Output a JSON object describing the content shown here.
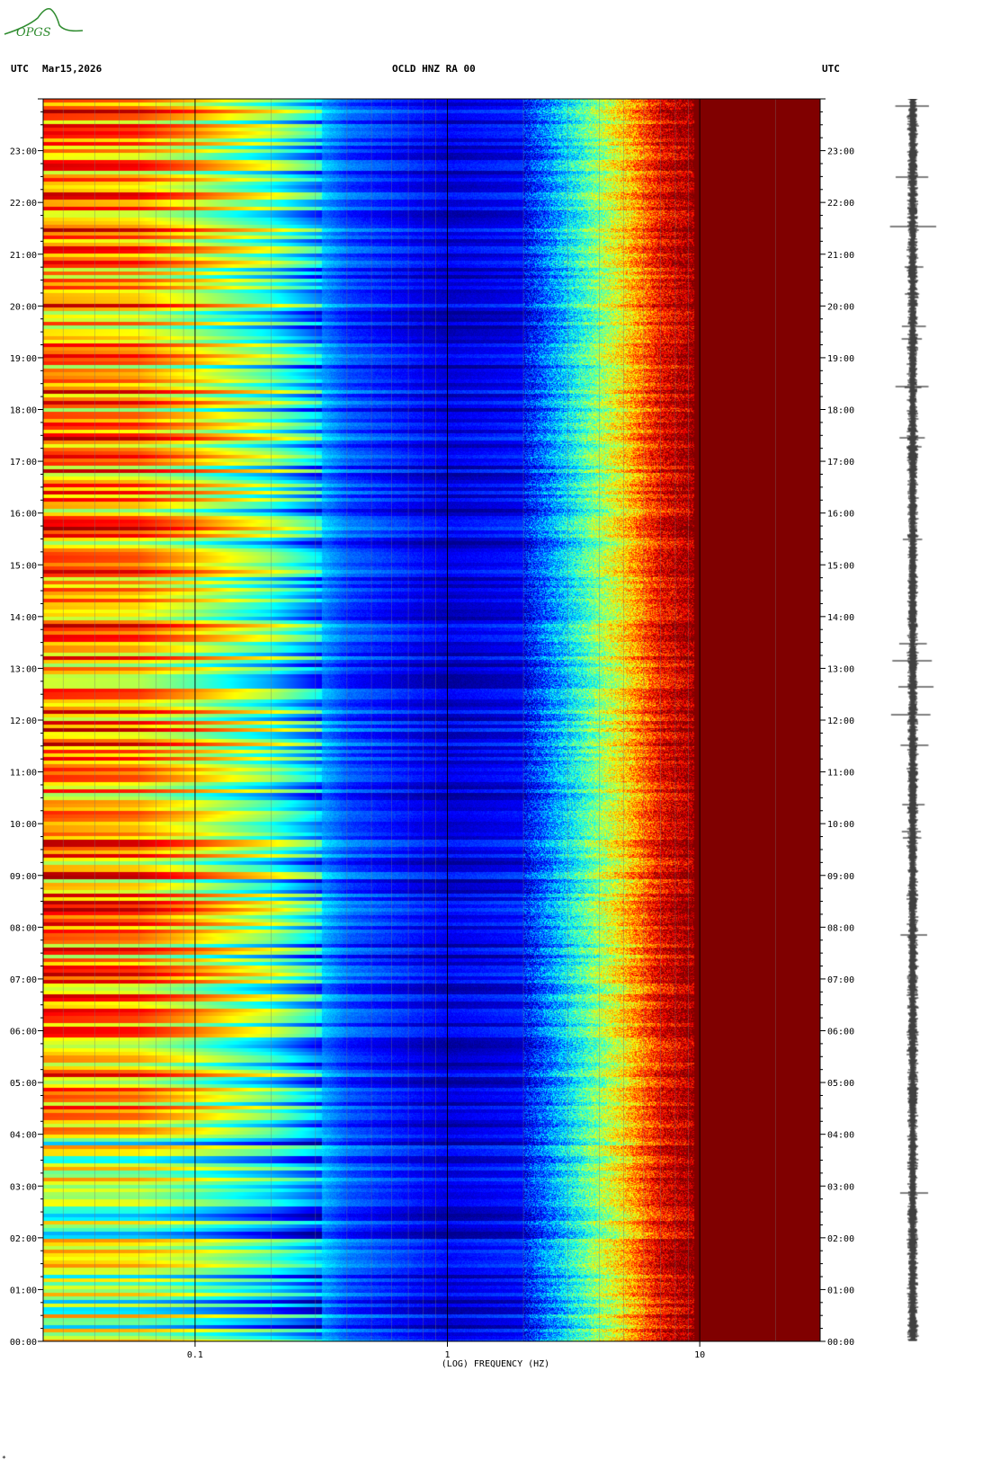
{
  "header": {
    "left_tz": "UTC",
    "date": "Mar15,2026",
    "station": "OCLD HNZ RA 00",
    "right_tz": "UTC"
  },
  "logo": {
    "text": "OPGS",
    "color": "#2e8b2e"
  },
  "corner_mark": "*",
  "chart_data": {
    "type": "heatmap",
    "title": "OCLD HNZ RA 00",
    "xlabel": "(LOG) FREQUENCY (HZ)",
    "xscale": "log",
    "xlim": [
      0.025,
      30
    ],
    "x_ticks": [
      0.1,
      1,
      10
    ],
    "x_tick_labels": [
      "0.1",
      "1",
      "10"
    ],
    "y_tick_labels": [
      "00:00",
      "01:00",
      "02:00",
      "03:00",
      "04:00",
      "05:00",
      "06:00",
      "07:00",
      "08:00",
      "09:00",
      "10:00",
      "11:00",
      "12:00",
      "13:00",
      "14:00",
      "15:00",
      "16:00",
      "17:00",
      "18:00",
      "19:00",
      "20:00",
      "21:00",
      "22:00",
      "23:00"
    ],
    "ylim_hours": [
      0,
      24
    ],
    "colormap": [
      "#00008f",
      "#0000ff",
      "#0080ff",
      "#00ffff",
      "#80ff80",
      "#ffff00",
      "#ff8000",
      "#ff0000",
      "#800000"
    ],
    "band_profile": [
      {
        "freq_hz": 0.025,
        "level": 0.75
      },
      {
        "freq_hz": 0.06,
        "level": 0.72
      },
      {
        "freq_hz": 0.1,
        "level": 0.62
      },
      {
        "freq_hz": 0.2,
        "level": 0.45
      },
      {
        "freq_hz": 0.4,
        "level": 0.2
      },
      {
        "freq_hz": 1.0,
        "level": 0.08
      },
      {
        "freq_hz": 2.0,
        "level": 0.12
      },
      {
        "freq_hz": 3.0,
        "level": 0.35
      },
      {
        "freq_hz": 5.0,
        "level": 0.65
      },
      {
        "freq_hz": 7.0,
        "level": 0.88
      },
      {
        "freq_hz": 10.0,
        "level": 1.0
      },
      {
        "freq_hz": 30.0,
        "level": 1.0
      }
    ]
  },
  "trace": {
    "label": "seismogram trace",
    "color": "#000000"
  }
}
